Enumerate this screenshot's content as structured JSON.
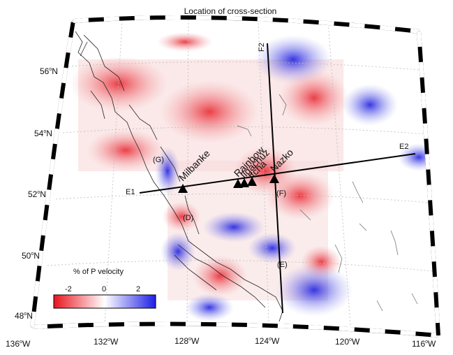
{
  "map": {
    "title": "Location of cross-section",
    "lat_labels": [
      {
        "deg": "56",
        "hemi": "N"
      },
      {
        "deg": "54",
        "hemi": "N"
      },
      {
        "deg": "52",
        "hemi": "N"
      },
      {
        "deg": "50",
        "hemi": "N"
      },
      {
        "deg": "48",
        "hemi": "N"
      }
    ],
    "lon_labels": [
      {
        "deg": "136",
        "hemi": "W"
      },
      {
        "deg": "132",
        "hemi": "W"
      },
      {
        "deg": "128",
        "hemi": "W"
      },
      {
        "deg": "124",
        "hemi": "W"
      },
      {
        "deg": "120",
        "hemi": "W"
      },
      {
        "deg": "116",
        "hemi": "W"
      }
    ],
    "volcanoes": [
      "Milbanke",
      "Rainbow",
      "Ilgachuz",
      "Itcha",
      "Nazko"
    ],
    "section_ends": {
      "E1": "E1",
      "E2": "E2",
      "F2": "F2"
    },
    "point_labels": [
      "(G)",
      "(D)",
      "(F)",
      "(E)"
    ],
    "colorbar": {
      "label": "% of  P velocity",
      "ticks": [
        "-2",
        "0",
        "2"
      ],
      "colors": {
        "low": "#e8141e",
        "mid": "#ffffff",
        "high": "#1e1ee6"
      }
    },
    "colors": {
      "border_dark": "#000000",
      "border_light": "#ffffff",
      "grid": "#bbbbbb",
      "coast": "#222222"
    }
  }
}
